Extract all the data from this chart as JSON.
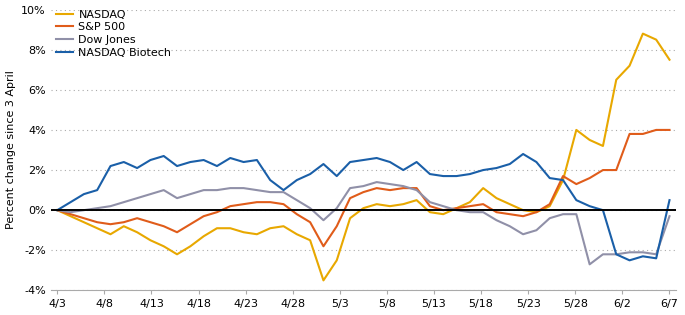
{
  "x_labels": [
    "4/3",
    "4/8",
    "4/13",
    "4/18",
    "4/23",
    "4/28",
    "5/3",
    "5/8",
    "5/13",
    "5/18",
    "5/23",
    "5/28",
    "6/2",
    "6/7"
  ],
  "nasdaq_color": "#E8A800",
  "sp500_color": "#E05C1A",
  "dow_color": "#9090A8",
  "biotech_color": "#1A5FA8",
  "ylabel": "Percent change since 3 April",
  "ylim": [
    -4,
    10
  ],
  "yticks": [
    -4,
    -2,
    0,
    2,
    4,
    6,
    8,
    10
  ],
  "bg_color": "#ffffff",
  "line_width": 1.5,
  "nasdaq_y": [
    0,
    -0.3,
    -0.6,
    -0.9,
    -1.2,
    -0.8,
    -1.1,
    -1.5,
    -1.8,
    -2.2,
    -1.8,
    -1.3,
    -0.9,
    -0.9,
    -1.1,
    -1.2,
    -0.9,
    -0.8,
    -1.2,
    -1.5,
    -3.5,
    -2.5,
    -0.4,
    0.1,
    0.3,
    0.2,
    0.3,
    0.5,
    -0.1,
    -0.2,
    0.1,
    0.4,
    1.1,
    0.6,
    0.3,
    0.0,
    -0.1,
    0.2,
    1.5,
    4.0,
    3.5,
    3.2,
    6.5,
    7.2,
    8.8,
    8.5,
    7.5
  ],
  "sp500_y": [
    0,
    -0.2,
    -0.4,
    -0.6,
    -0.7,
    -0.6,
    -0.4,
    -0.6,
    -0.8,
    -1.1,
    -0.7,
    -0.3,
    -0.1,
    0.2,
    0.3,
    0.4,
    0.4,
    0.3,
    -0.2,
    -0.6,
    -1.8,
    -0.8,
    0.6,
    0.9,
    1.1,
    1.0,
    1.1,
    1.1,
    0.2,
    0.0,
    0.1,
    0.2,
    0.3,
    -0.1,
    -0.2,
    -0.3,
    -0.1,
    0.3,
    1.7,
    1.3,
    1.6,
    2.0,
    2.0,
    3.8,
    3.8,
    4.0,
    4.0
  ],
  "dow_y": [
    0,
    -0.1,
    0.0,
    0.1,
    0.2,
    0.4,
    0.6,
    0.8,
    1.0,
    0.6,
    0.8,
    1.0,
    1.0,
    1.1,
    1.1,
    1.0,
    0.9,
    0.9,
    0.5,
    0.1,
    -0.5,
    0.1,
    1.1,
    1.2,
    1.4,
    1.3,
    1.2,
    1.0,
    0.4,
    0.2,
    0.0,
    -0.1,
    -0.1,
    -0.5,
    -0.8,
    -1.2,
    -1.0,
    -0.4,
    -0.2,
    -0.2,
    -2.7,
    -2.2,
    -2.2,
    -2.1,
    -2.1,
    -2.2,
    -0.3
  ],
  "biotech_y": [
    0,
    0.4,
    0.8,
    1.0,
    2.2,
    2.4,
    2.1,
    2.5,
    2.7,
    2.2,
    2.4,
    2.5,
    2.2,
    2.6,
    2.4,
    2.5,
    1.5,
    1.0,
    1.5,
    1.8,
    2.3,
    1.7,
    2.4,
    2.5,
    2.6,
    2.4,
    2.0,
    2.4,
    1.8,
    1.7,
    1.7,
    1.8,
    2.0,
    2.1,
    2.3,
    2.8,
    2.4,
    1.6,
    1.5,
    0.5,
    0.2,
    0.0,
    -2.2,
    -2.5,
    -2.3,
    -2.4,
    0.5
  ]
}
